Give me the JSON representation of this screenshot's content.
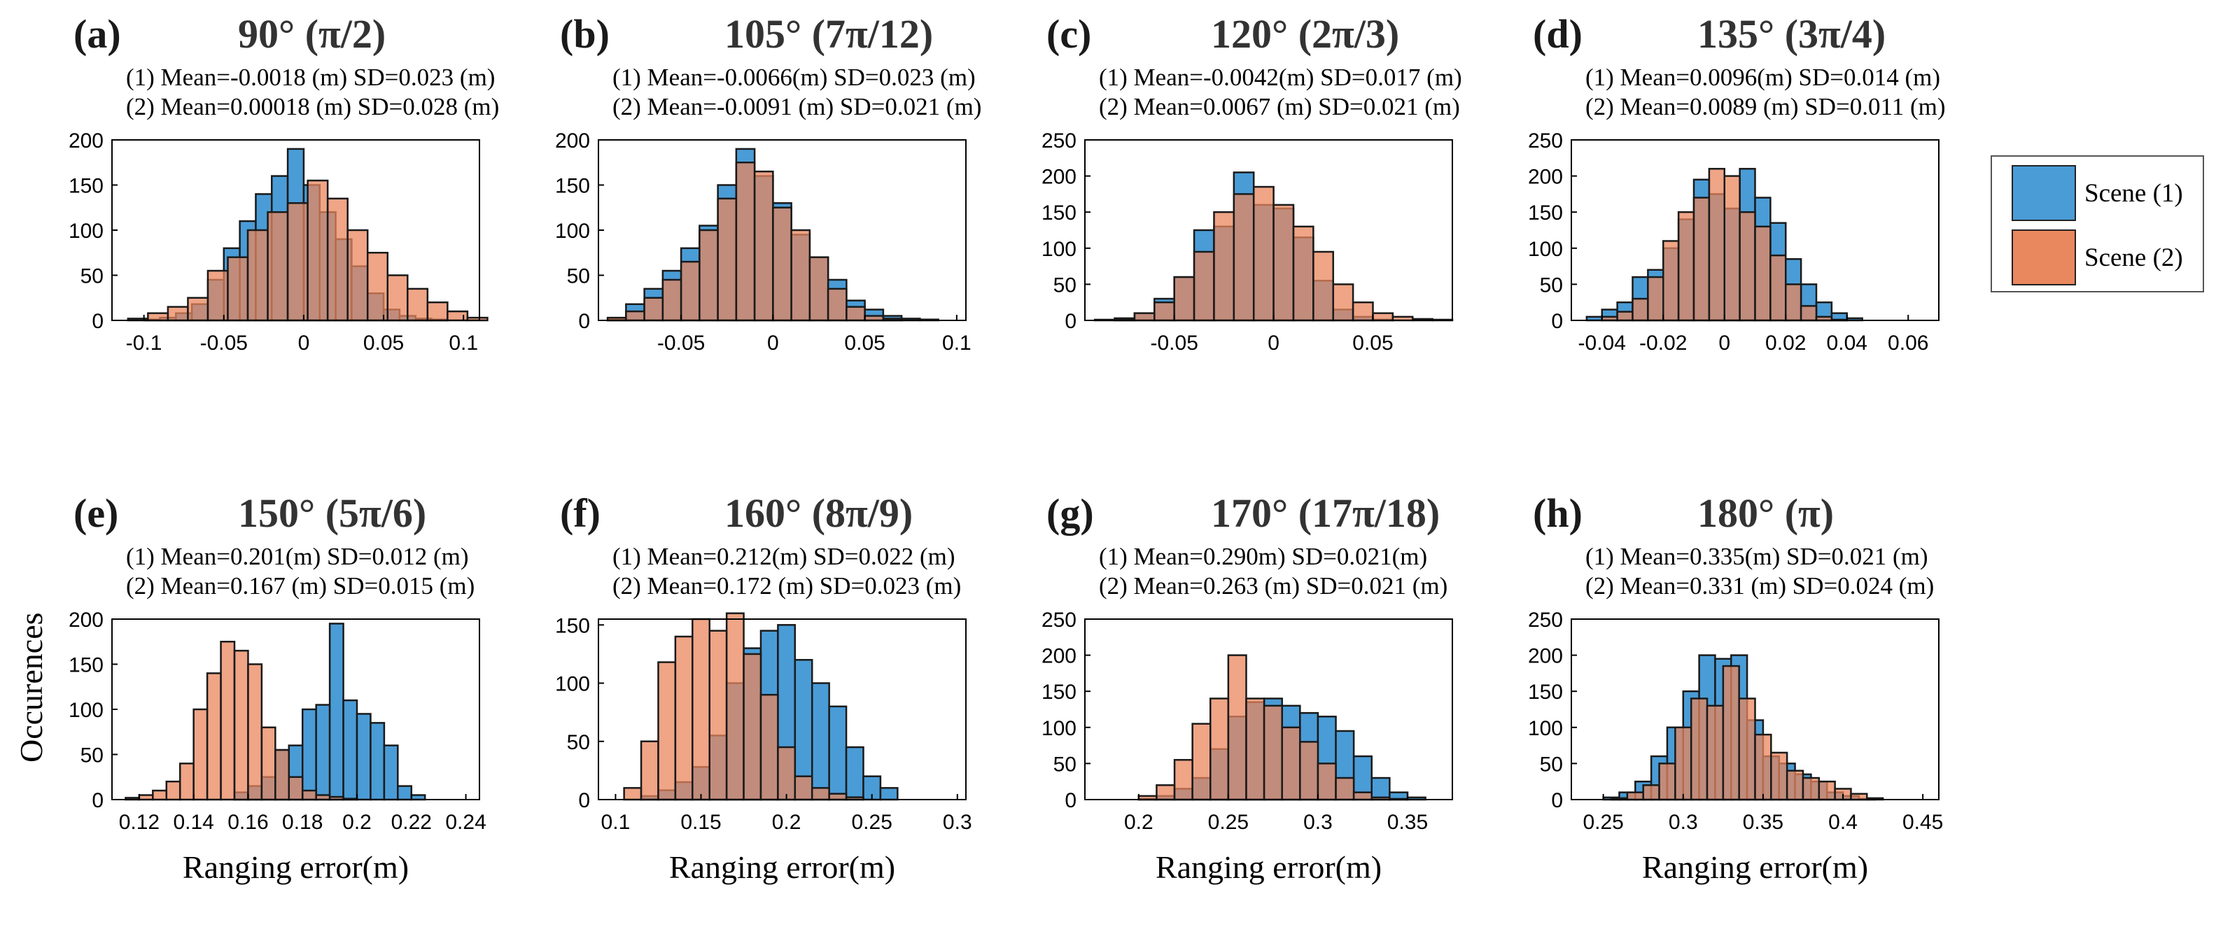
{
  "figure": {
    "ylabel": "Occurences",
    "legend": [
      {
        "label": "Scene (1)",
        "color": "#4a9cd6"
      },
      {
        "label": "Scene (2)",
        "color": "#e9875e"
      }
    ]
  },
  "chart_data": [
    {
      "type": "bar",
      "letter": "(a)",
      "title": "90°  (π/2)",
      "stats": [
        "(1) Mean=-0.0018 (m)  SD=0.023 (m)",
        "(2) Mean=0.00018 (m)  SD=0.028 (m)"
      ],
      "xlim": [
        -0.12,
        0.11
      ],
      "ylim": [
        0,
        200
      ],
      "xticks": [
        -0.1,
        -0.05,
        0,
        0.05,
        0.1
      ],
      "xticklabels": [
        "-0.1",
        "-0.05",
        "0",
        "0.05",
        "0.1"
      ],
      "yticks": [
        0,
        50,
        100,
        150,
        200
      ],
      "xlabel": "",
      "series": [
        {
          "name": "Scene (1)",
          "bin_start": -0.1,
          "bin_width": 0.01,
          "values": [
            1,
            3,
            8,
            18,
            45,
            80,
            110,
            140,
            160,
            190,
            150,
            120,
            90,
            60,
            30,
            12,
            5,
            2,
            1,
            0
          ]
        },
        {
          "name": "Scene (2)",
          "bin_start": -0.11,
          "bin_width": 0.0125,
          "values": [
            2,
            8,
            15,
            25,
            55,
            70,
            100,
            120,
            130,
            155,
            135,
            100,
            75,
            50,
            35,
            20,
            10,
            3
          ]
        }
      ]
    },
    {
      "type": "bar",
      "letter": "(b)",
      "title": "105°  (7π/12)",
      "stats": [
        "(1) Mean=-0.0066(m)  SD=0.023 (m)",
        "(2) Mean=-0.0091 (m)  SD=0.021 (m)"
      ],
      "xlim": [
        -0.095,
        0.105
      ],
      "ylim": [
        0,
        200
      ],
      "xticks": [
        -0.05,
        0,
        0.05,
        0.1
      ],
      "xticklabels": [
        "-0.05",
        "0",
        "0.05",
        "0.1"
      ],
      "yticks": [
        0,
        50,
        100,
        150,
        200
      ],
      "xlabel": "",
      "series": [
        {
          "name": "Scene (1)",
          "bin_start": -0.09,
          "bin_width": 0.01,
          "values": [
            2,
            18,
            35,
            55,
            80,
            105,
            150,
            190,
            160,
            130,
            95,
            70,
            45,
            22,
            12,
            5,
            2,
            1
          ]
        },
        {
          "name": "Scene (2)",
          "bin_start": -0.09,
          "bin_width": 0.01,
          "values": [
            3,
            10,
            25,
            45,
            65,
            100,
            135,
            175,
            165,
            125,
            100,
            70,
            35,
            15,
            5,
            2,
            0,
            0
          ]
        }
      ]
    },
    {
      "type": "bar",
      "letter": "(c)",
      "title": "120°  (2π/3)",
      "stats": [
        "(1) Mean=-0.0042(m)  SD=0.017 (m)",
        "(2) Mean=0.0067 (m)  SD=0.021 (m)"
      ],
      "xlim": [
        -0.095,
        0.09
      ],
      "ylim": [
        0,
        250
      ],
      "xticks": [
        -0.05,
        0,
        0.05
      ],
      "xticklabels": [
        "-0.05",
        "0",
        "0.05"
      ],
      "yticks": [
        0,
        50,
        100,
        150,
        200,
        250
      ],
      "xlabel": "",
      "series": [
        {
          "name": "Scene (1)",
          "bin_start": -0.09,
          "bin_width": 0.01,
          "values": [
            1,
            3,
            10,
            30,
            60,
            125,
            130,
            205,
            160,
            155,
            115,
            55,
            15,
            5,
            1,
            0,
            0,
            0
          ]
        },
        {
          "name": "Scene (2)",
          "bin_start": -0.09,
          "bin_width": 0.01,
          "values": [
            0,
            2,
            10,
            25,
            60,
            95,
            150,
            175,
            185,
            160,
            130,
            95,
            50,
            25,
            10,
            5,
            2,
            1
          ]
        }
      ]
    },
    {
      "type": "bar",
      "letter": "(d)",
      "title": "135°  (3π/4)",
      "stats": [
        "(1) Mean=0.0096(m)  SD=0.014 (m)",
        "(2) Mean=0.0089 (m)  SD=0.011 (m)"
      ],
      "xlim": [
        -0.05,
        0.07
      ],
      "ylim": [
        0,
        250
      ],
      "xticks": [
        -0.04,
        -0.02,
        0,
        0.02,
        0.04,
        0.06
      ],
      "xticklabels": [
        "-0.04",
        "-0.02",
        "0",
        "0.02",
        "0.04",
        "0.06"
      ],
      "yticks": [
        0,
        50,
        100,
        150,
        200,
        250
      ],
      "xlabel": "",
      "series": [
        {
          "name": "Scene (1)",
          "bin_start": -0.045,
          "bin_width": 0.005,
          "values": [
            5,
            15,
            25,
            60,
            70,
            100,
            140,
            195,
            175,
            155,
            210,
            170,
            135,
            85,
            50,
            25,
            10,
            3
          ]
        },
        {
          "name": "Scene (2)",
          "bin_start": -0.045,
          "bin_width": 0.005,
          "values": [
            0,
            5,
            12,
            30,
            60,
            110,
            150,
            170,
            210,
            200,
            150,
            130,
            90,
            50,
            20,
            5,
            1,
            0
          ]
        }
      ]
    },
    {
      "type": "bar",
      "letter": "(e)",
      "title": "150°  (5π/6)",
      "stats": [
        "(1) Mean=0.201(m)  SD=0.012 (m)",
        "(2) Mean=0.167 (m)  SD=0.015 (m)"
      ],
      "xlim": [
        0.11,
        0.245
      ],
      "ylim": [
        0,
        200
      ],
      "xticks": [
        0.12,
        0.14,
        0.16,
        0.18,
        0.2,
        0.22,
        0.24
      ],
      "xticklabels": [
        "0.12",
        "0.14",
        "0.16",
        "0.18",
        "0.2",
        "0.22",
        "0.24"
      ],
      "yticks": [
        0,
        50,
        100,
        150,
        200
      ],
      "xlabel": "Ranging error(m)",
      "series": [
        {
          "name": "Scene (1)",
          "bin_start": 0.155,
          "bin_width": 0.005,
          "values": [
            8,
            15,
            25,
            55,
            60,
            100,
            105,
            195,
            110,
            95,
            85,
            60,
            15,
            5
          ]
        },
        {
          "name": "Scene (2)",
          "bin_start": 0.115,
          "bin_width": 0.005,
          "values": [
            2,
            5,
            10,
            20,
            40,
            100,
            140,
            175,
            165,
            150,
            80,
            55,
            25,
            10,
            5,
            3,
            1,
            0
          ]
        }
      ]
    },
    {
      "type": "bar",
      "letter": "(f)",
      "title": "160°  (8π/9)",
      "stats": [
        "(1) Mean=0.212(m)  SD=0.022 (m)",
        "(2) Mean=0.172 (m)  SD=0.023 (m)"
      ],
      "xlim": [
        0.09,
        0.305
      ],
      "ylim": [
        0,
        155
      ],
      "xticks": [
        0.1,
        0.15,
        0.2,
        0.25,
        0.3
      ],
      "xticklabels": [
        "0.1",
        "0.15",
        "0.2",
        "0.25",
        "0.3"
      ],
      "yticks": [
        0,
        50,
        100,
        150
      ],
      "xlabel": "Ranging error(m)",
      "series": [
        {
          "name": "Scene (1)",
          "bin_start": 0.115,
          "bin_width": 0.01,
          "values": [
            3,
            8,
            15,
            28,
            55,
            100,
            130,
            145,
            150,
            120,
            100,
            80,
            45,
            20,
            10
          ]
        },
        {
          "name": "Scene (2)",
          "bin_start": 0.105,
          "bin_width": 0.01,
          "values": [
            10,
            50,
            118,
            140,
            155,
            145,
            160,
            125,
            90,
            45,
            20,
            10,
            5,
            2
          ]
        }
      ]
    },
    {
      "type": "bar",
      "letter": "(g)",
      "title": "170°  (17π/18)",
      "stats": [
        "(1) Mean=0.290m)  SD=0.021(m)",
        "(2) Mean=0.263 (m)  SD=0.021 (m)"
      ],
      "xlim": [
        0.17,
        0.375
      ],
      "ylim": [
        0,
        250
      ],
      "xticks": [
        0.2,
        0.25,
        0.3,
        0.35
      ],
      "xticklabels": [
        "0.2",
        "0.25",
        "0.3",
        "0.35"
      ],
      "yticks": [
        0,
        50,
        100,
        150,
        200,
        250
      ],
      "xlabel": "Ranging error(m)",
      "series": [
        {
          "name": "Scene (1)",
          "bin_start": 0.2,
          "bin_width": 0.01,
          "values": [
            1,
            5,
            15,
            30,
            70,
            115,
            135,
            140,
            130,
            120,
            115,
            95,
            60,
            30,
            10,
            3
          ]
        },
        {
          "name": "Scene (2)",
          "bin_start": 0.2,
          "bin_width": 0.01,
          "values": [
            5,
            20,
            55,
            105,
            140,
            200,
            140,
            130,
            100,
            80,
            50,
            30,
            10,
            3,
            1,
            0
          ]
        }
      ]
    },
    {
      "type": "bar",
      "letter": "(h)",
      "title": "180°  (π)",
      "stats": [
        "(1) Mean=0.335(m)  SD=0.021 (m)",
        "(2) Mean=0.331 (m)  SD=0.024 (m)"
      ],
      "xlim": [
        0.23,
        0.46
      ],
      "ylim": [
        0,
        250
      ],
      "xticks": [
        0.25,
        0.3,
        0.35,
        0.4,
        0.45
      ],
      "xticklabels": [
        "0.25",
        "0.3",
        "0.35",
        "0.4",
        "0.45"
      ],
      "yticks": [
        0,
        50,
        100,
        150,
        200,
        250
      ],
      "xlabel": "Ranging error(m)",
      "series": [
        {
          "name": "Scene (1)",
          "bin_start": 0.25,
          "bin_width": 0.01,
          "values": [
            3,
            10,
            25,
            60,
            100,
            150,
            200,
            195,
            200,
            110,
            60,
            50,
            35,
            25,
            10,
            5,
            1
          ]
        },
        {
          "name": "Scene (2)",
          "bin_start": 0.255,
          "bin_width": 0.01,
          "values": [
            2,
            10,
            20,
            50,
            100,
            140,
            130,
            185,
            140,
            90,
            65,
            40,
            30,
            25,
            15,
            8,
            2
          ]
        }
      ]
    }
  ]
}
